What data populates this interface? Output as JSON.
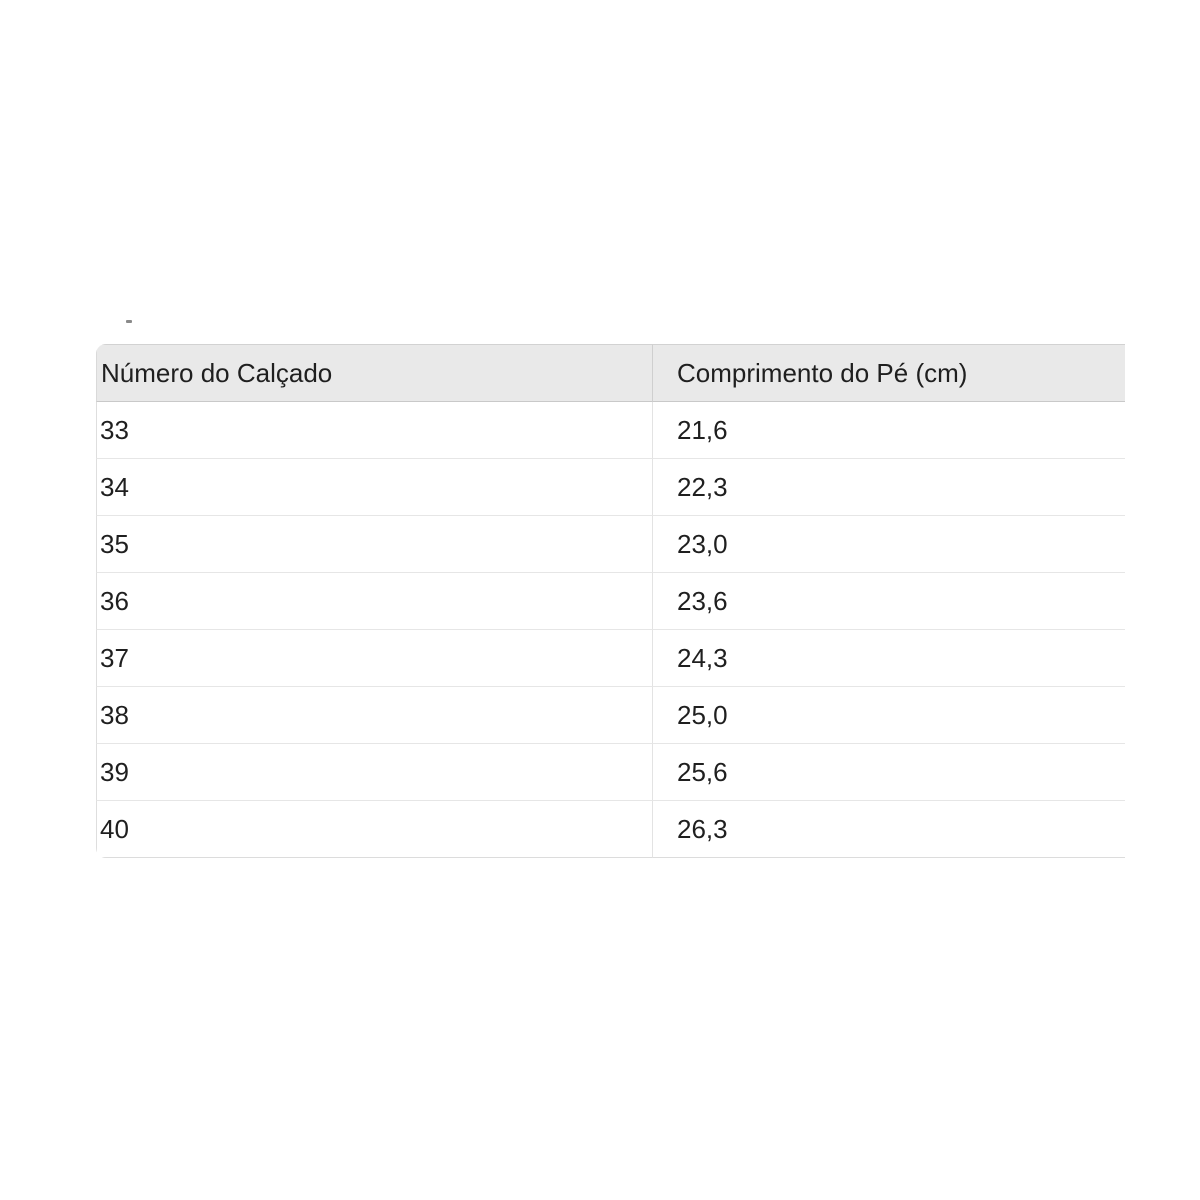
{
  "table": {
    "columns": [
      "Número do Calçado",
      "Comprimento do Pé (cm)"
    ],
    "rows": [
      {
        "size": "33",
        "length": "21,6"
      },
      {
        "size": "34",
        "length": "22,3"
      },
      {
        "size": "35",
        "length": "23,0"
      },
      {
        "size": "36",
        "length": "23,6"
      },
      {
        "size": "37",
        "length": "24,3"
      },
      {
        "size": "38",
        "length": "25,0"
      },
      {
        "size": "39",
        "length": "25,6"
      },
      {
        "size": "40",
        "length": "26,3"
      }
    ]
  },
  "colors": {
    "page_background": "#ffffff",
    "header_background": "#e9e9e9",
    "outer_border": "#d2d2d2",
    "header_bottom_border": "#c9c9c9",
    "row_separator": "#e6e6e6",
    "column_divider": "#e3e3e3",
    "text": "#1f1f1f"
  }
}
